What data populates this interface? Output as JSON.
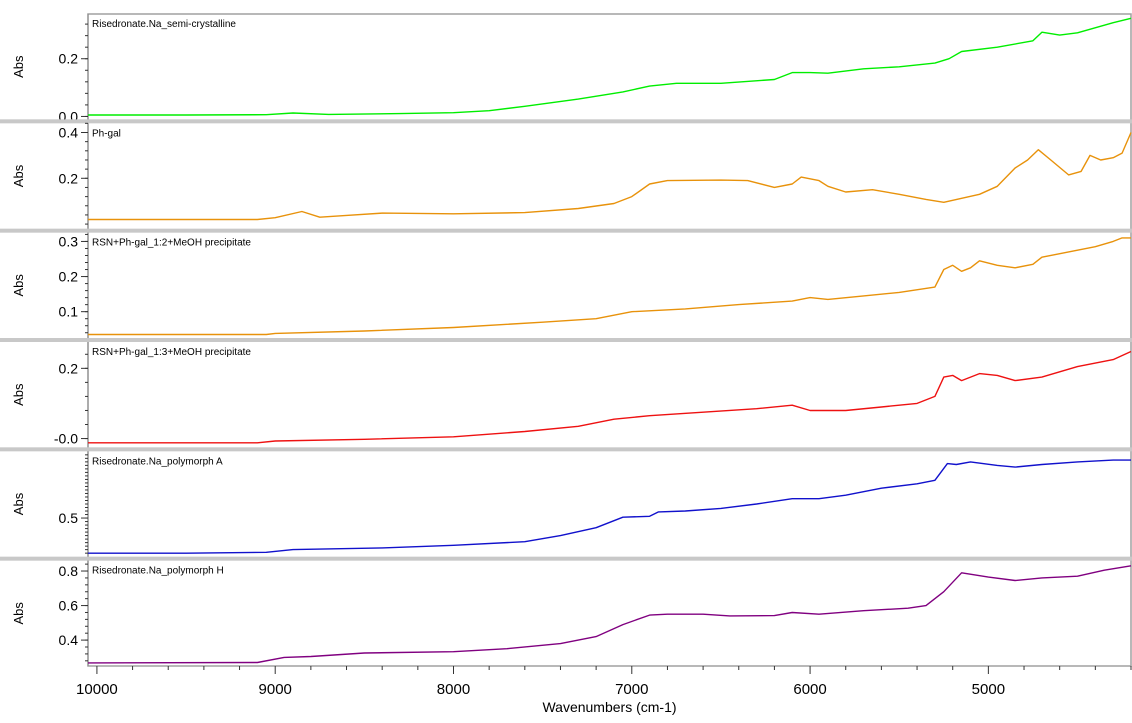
{
  "chart_data": {
    "type": "line",
    "stacked_panels": true,
    "xlabel": "Wavenumbers (cm-1)",
    "x_reversed": true,
    "xlim": [
      10050,
      4200
    ],
    "x_ticks": [
      10000,
      9000,
      8000,
      7000,
      6000,
      5000
    ],
    "grid": false,
    "panels": [
      {
        "name": "Risedronate.Na_semi-crystalline",
        "ylabel": "Abs",
        "color": "#00ee00",
        "ylim": [
          -0.01,
          0.355
        ],
        "y_ticks": [
          0.0,
          0.2
        ],
        "y_tick_labels": [
          "0.0",
          "0.2"
        ],
        "points": [
          [
            10050,
            0.005
          ],
          [
            9500,
            0.005
          ],
          [
            9050,
            0.006
          ],
          [
            8900,
            0.012
          ],
          [
            8700,
            0.007
          ],
          [
            8300,
            0.01
          ],
          [
            8000,
            0.013
          ],
          [
            7800,
            0.02
          ],
          [
            7600,
            0.035
          ],
          [
            7300,
            0.06
          ],
          [
            7050,
            0.085
          ],
          [
            6900,
            0.105
          ],
          [
            6750,
            0.115
          ],
          [
            6500,
            0.115
          ],
          [
            6200,
            0.128
          ],
          [
            6100,
            0.152
          ],
          [
            6000,
            0.152
          ],
          [
            5900,
            0.15
          ],
          [
            5700,
            0.165
          ],
          [
            5500,
            0.172
          ],
          [
            5300,
            0.185
          ],
          [
            5220,
            0.2
          ],
          [
            5150,
            0.225
          ],
          [
            4950,
            0.24
          ],
          [
            4750,
            0.262
          ],
          [
            4700,
            0.292
          ],
          [
            4600,
            0.282
          ],
          [
            4500,
            0.29
          ],
          [
            4300,
            0.325
          ],
          [
            4200,
            0.34
          ]
        ]
      },
      {
        "name": "Ph-gal",
        "ylabel": "Abs",
        "color": "#e8920b",
        "ylim": [
          -0.02,
          0.44
        ],
        "y_ticks": [
          0.2,
          0.4
        ],
        "y_tick_labels": [
          "0.2",
          "0.4"
        ],
        "points": [
          [
            10050,
            0.02
          ],
          [
            9100,
            0.02
          ],
          [
            9000,
            0.028
          ],
          [
            8850,
            0.055
          ],
          [
            8750,
            0.03
          ],
          [
            8600,
            0.038
          ],
          [
            8400,
            0.048
          ],
          [
            8000,
            0.045
          ],
          [
            7600,
            0.05
          ],
          [
            7300,
            0.068
          ],
          [
            7100,
            0.09
          ],
          [
            7000,
            0.12
          ],
          [
            6900,
            0.175
          ],
          [
            6800,
            0.19
          ],
          [
            6500,
            0.192
          ],
          [
            6350,
            0.19
          ],
          [
            6200,
            0.16
          ],
          [
            6100,
            0.175
          ],
          [
            6050,
            0.205
          ],
          [
            5950,
            0.19
          ],
          [
            5900,
            0.165
          ],
          [
            5800,
            0.14
          ],
          [
            5650,
            0.15
          ],
          [
            5500,
            0.13
          ],
          [
            5350,
            0.108
          ],
          [
            5250,
            0.095
          ],
          [
            5050,
            0.13
          ],
          [
            4950,
            0.165
          ],
          [
            4850,
            0.245
          ],
          [
            4780,
            0.28
          ],
          [
            4720,
            0.325
          ],
          [
            4650,
            0.28
          ],
          [
            4550,
            0.215
          ],
          [
            4480,
            0.23
          ],
          [
            4430,
            0.3
          ],
          [
            4370,
            0.28
          ],
          [
            4300,
            0.29
          ],
          [
            4250,
            0.31
          ],
          [
            4200,
            0.4
          ]
        ]
      },
      {
        "name": "RSN+Ph-gal_1:2+MeOH precipitate",
        "ylabel": "Abs",
        "color": "#e8920b",
        "ylim": [
          0.025,
          0.325
        ],
        "y_ticks": [
          0.1,
          0.2,
          0.3
        ],
        "y_tick_labels": [
          "0.1",
          "0.2",
          "0.3"
        ],
        "points": [
          [
            10050,
            0.035
          ],
          [
            9050,
            0.035
          ],
          [
            9000,
            0.038
          ],
          [
            8500,
            0.045
          ],
          [
            8000,
            0.055
          ],
          [
            7500,
            0.07
          ],
          [
            7200,
            0.08
          ],
          [
            7000,
            0.1
          ],
          [
            6700,
            0.108
          ],
          [
            6400,
            0.12
          ],
          [
            6100,
            0.13
          ],
          [
            6000,
            0.14
          ],
          [
            5900,
            0.135
          ],
          [
            5700,
            0.145
          ],
          [
            5500,
            0.155
          ],
          [
            5300,
            0.17
          ],
          [
            5250,
            0.22
          ],
          [
            5200,
            0.232
          ],
          [
            5150,
            0.215
          ],
          [
            5100,
            0.225
          ],
          [
            5050,
            0.245
          ],
          [
            4950,
            0.232
          ],
          [
            4850,
            0.225
          ],
          [
            4750,
            0.235
          ],
          [
            4700,
            0.255
          ],
          [
            4500,
            0.275
          ],
          [
            4400,
            0.285
          ],
          [
            4300,
            0.3
          ],
          [
            4250,
            0.31
          ],
          [
            4200,
            0.31
          ]
        ]
      },
      {
        "name": "RSN+Ph-gal_1:3+MeOH precipitate",
        "ylabel": "Abs",
        "color": "#ee1111",
        "ylim": [
          -0.025,
          0.275
        ],
        "y_ticks": [
          0.0,
          0.2
        ],
        "y_tick_labels": [
          "-0.0",
          "0.2"
        ],
        "points": [
          [
            10050,
            -0.012
          ],
          [
            9100,
            -0.012
          ],
          [
            9000,
            -0.007
          ],
          [
            8500,
            -0.002
          ],
          [
            8000,
            0.005
          ],
          [
            7600,
            0.02
          ],
          [
            7300,
            0.035
          ],
          [
            7100,
            0.055
          ],
          [
            6900,
            0.065
          ],
          [
            6600,
            0.075
          ],
          [
            6300,
            0.085
          ],
          [
            6100,
            0.095
          ],
          [
            6000,
            0.08
          ],
          [
            5800,
            0.08
          ],
          [
            5600,
            0.09
          ],
          [
            5400,
            0.1
          ],
          [
            5300,
            0.12
          ],
          [
            5250,
            0.175
          ],
          [
            5200,
            0.18
          ],
          [
            5150,
            0.165
          ],
          [
            5050,
            0.185
          ],
          [
            4950,
            0.18
          ],
          [
            4850,
            0.165
          ],
          [
            4700,
            0.175
          ],
          [
            4500,
            0.205
          ],
          [
            4300,
            0.225
          ],
          [
            4200,
            0.248
          ]
        ]
      },
      {
        "name": "Risedronate.Na_polymorph A",
        "ylabel": "Abs",
        "color": "#1111cc",
        "ylim": [
          0.28,
          0.88
        ],
        "y_ticks": [
          0.5
        ],
        "y_tick_labels": [
          "0.5"
        ],
        "points": [
          [
            10050,
            0.3
          ],
          [
            9500,
            0.3
          ],
          [
            9050,
            0.305
          ],
          [
            8900,
            0.32
          ],
          [
            8400,
            0.33
          ],
          [
            8000,
            0.345
          ],
          [
            7600,
            0.365
          ],
          [
            7400,
            0.4
          ],
          [
            7200,
            0.445
          ],
          [
            7050,
            0.505
          ],
          [
            6900,
            0.51
          ],
          [
            6850,
            0.535
          ],
          [
            6700,
            0.54
          ],
          [
            6500,
            0.555
          ],
          [
            6300,
            0.58
          ],
          [
            6100,
            0.61
          ],
          [
            5950,
            0.61
          ],
          [
            5800,
            0.63
          ],
          [
            5600,
            0.67
          ],
          [
            5400,
            0.695
          ],
          [
            5300,
            0.715
          ],
          [
            5230,
            0.81
          ],
          [
            5180,
            0.805
          ],
          [
            5100,
            0.82
          ],
          [
            4950,
            0.8
          ],
          [
            4850,
            0.79
          ],
          [
            4700,
            0.805
          ],
          [
            4500,
            0.82
          ],
          [
            4300,
            0.83
          ],
          [
            4200,
            0.83
          ]
        ]
      },
      {
        "name": "Risedronate.Na_polymorph H",
        "ylabel": "Abs",
        "color": "#800080",
        "ylim": [
          0.25,
          0.86
        ],
        "y_ticks": [
          0.4,
          0.6,
          0.8
        ],
        "y_tick_labels": [
          "0.4",
          "0.6",
          "0.8"
        ],
        "points": [
          [
            10050,
            0.268
          ],
          [
            9100,
            0.27
          ],
          [
            8950,
            0.3
          ],
          [
            8800,
            0.305
          ],
          [
            8500,
            0.325
          ],
          [
            8000,
            0.333
          ],
          [
            7700,
            0.35
          ],
          [
            7400,
            0.38
          ],
          [
            7200,
            0.42
          ],
          [
            7050,
            0.49
          ],
          [
            6900,
            0.545
          ],
          [
            6800,
            0.55
          ],
          [
            6600,
            0.55
          ],
          [
            6450,
            0.54
          ],
          [
            6200,
            0.542
          ],
          [
            6100,
            0.56
          ],
          [
            5950,
            0.55
          ],
          [
            5700,
            0.57
          ],
          [
            5450,
            0.585
          ],
          [
            5350,
            0.6
          ],
          [
            5250,
            0.68
          ],
          [
            5150,
            0.79
          ],
          [
            5000,
            0.765
          ],
          [
            4850,
            0.745
          ],
          [
            4700,
            0.76
          ],
          [
            4500,
            0.77
          ],
          [
            4350,
            0.805
          ],
          [
            4200,
            0.83
          ]
        ]
      }
    ]
  }
}
